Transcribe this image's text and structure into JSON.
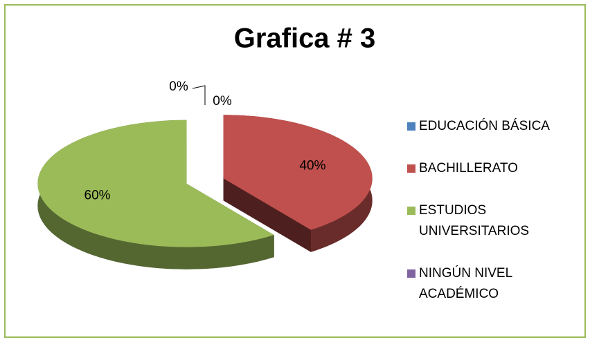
{
  "chart_data": {
    "type": "pie",
    "title": "Grafica # 3",
    "categories": [
      "EDUCACIÓN BÁSICA",
      "BACHILLERATO",
      "ESTUDIOS UNIVERSITARIOS",
      "NINGÚN NIVEL ACADÉMICO"
    ],
    "values": [
      0,
      40,
      60,
      0
    ],
    "value_labels": [
      "0%",
      "40%",
      "60%",
      "0%"
    ],
    "colors": [
      "#4f81bd",
      "#c0504d",
      "#9bbb59",
      "#8064a2"
    ],
    "legend": "right"
  }
}
